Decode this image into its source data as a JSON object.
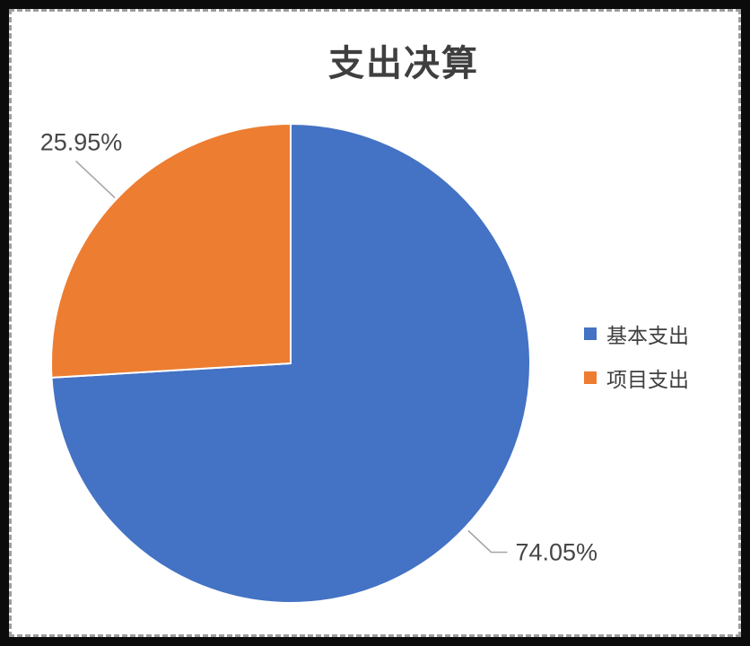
{
  "frame": {
    "border_color": "#0b0b0b",
    "stitch_color": "#9e9e9e",
    "paper_color": "#ffffff"
  },
  "chart_data": {
    "type": "pie",
    "title": "支出决算",
    "categories": [
      "基本支出",
      "项目支出"
    ],
    "values": [
      74.05,
      25.95
    ],
    "data_labels": [
      "74.05%",
      "25.95%"
    ],
    "colors": [
      "#4472C4",
      "#ED7D31"
    ],
    "legend_position": "right",
    "start_angle_deg": 0,
    "direction": "clockwise",
    "leader_line_color": "#a6a6a6",
    "title_color": "#3f3f3f",
    "label_color": "#474747"
  }
}
